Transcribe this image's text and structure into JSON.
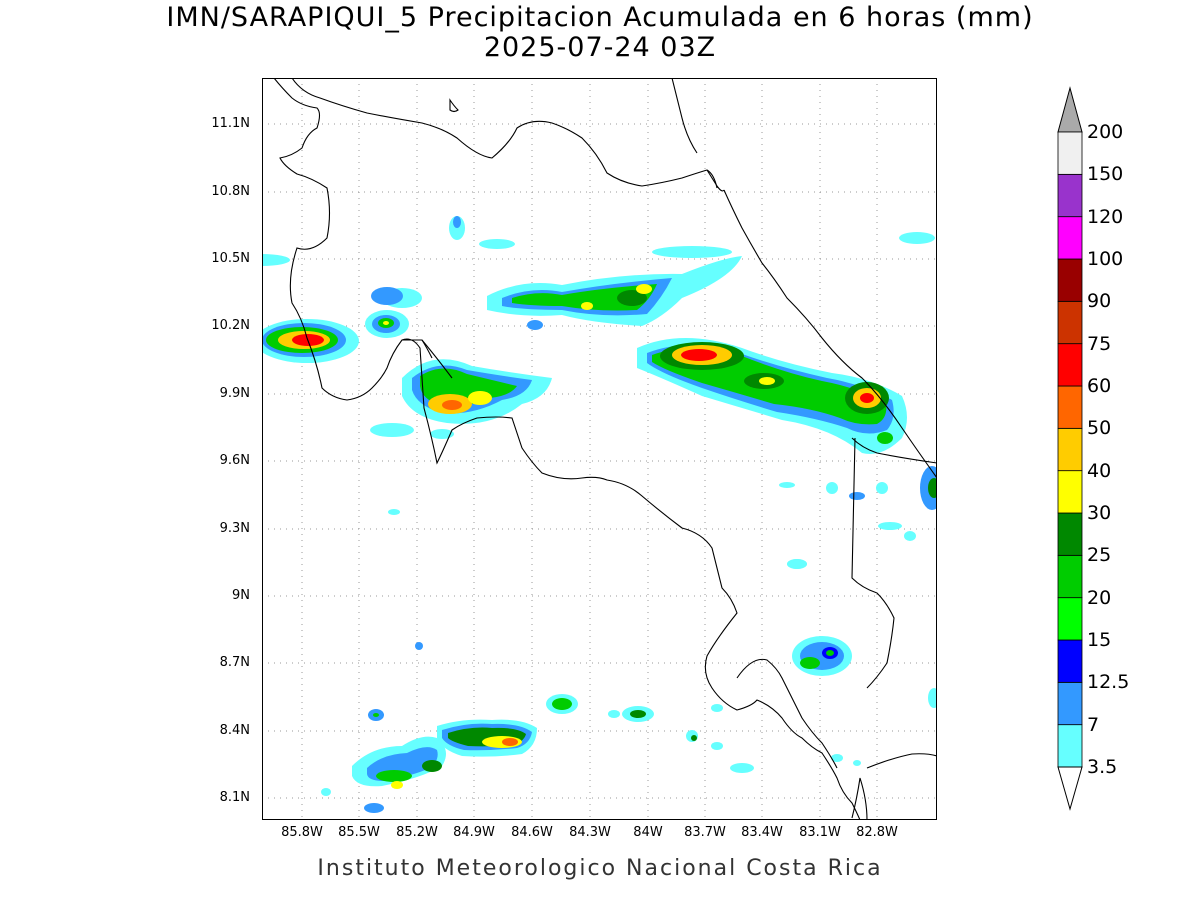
{
  "title": {
    "line1": "IMN/SARAPIQUI_5 Precipitacion Acumulada en 6 horas (mm)",
    "line2": "2025-07-24 03Z"
  },
  "footer": "Instituto Meteorologico Nacional Costa Rica",
  "lat_ticks": [
    "11.1N",
    "10.8N",
    "10.5N",
    "10.2N",
    "9.9N",
    "9.6N",
    "9.3N",
    "9N",
    "8.7N",
    "8.4N",
    "8.1N"
  ],
  "lon_ticks": [
    "85.8W",
    "85.5W",
    "85.2W",
    "84.9W",
    "84.6W",
    "84.3W",
    "84W",
    "83.7W",
    "83.4W",
    "83.1W",
    "82.8W"
  ],
  "colorbar": {
    "labels": [
      "3.5",
      "7",
      "12.5",
      "15",
      "20",
      "25",
      "30",
      "40",
      "50",
      "60",
      "75",
      "90",
      "100",
      "120",
      "150",
      "200"
    ],
    "colors": [
      "#66ffff",
      "#3399ff",
      "#0000ff",
      "#00ff00",
      "#00cc00",
      "#008800",
      "#ffff00",
      "#ffcc00",
      "#ff6600",
      "#ff0000",
      "#cc3300",
      "#990000",
      "#ff00ff",
      "#9933cc",
      "#f0f0f0"
    ],
    "low_end_color": "#ffffff",
    "high_end_color": "#aaaaaa"
  }
}
